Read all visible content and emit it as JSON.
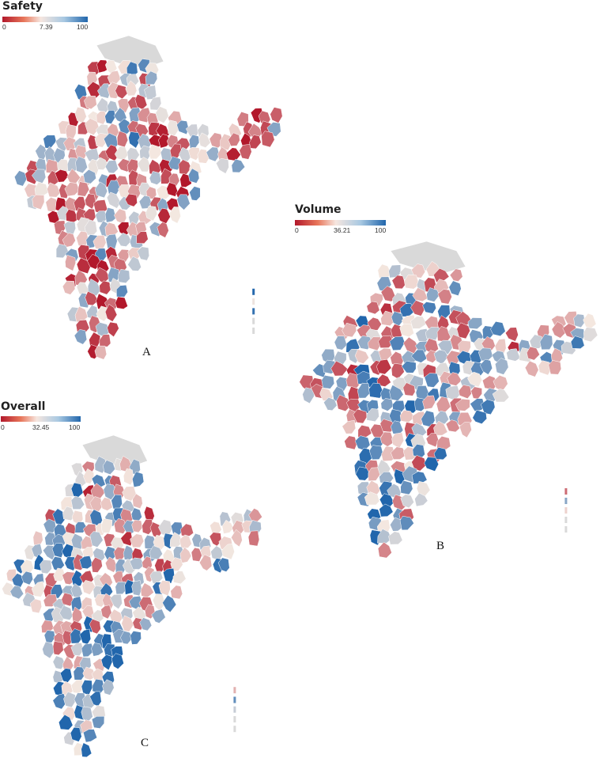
{
  "colors": {
    "low": "#b2182b",
    "mid": "#f4e8e0",
    "high": "#2166ac",
    "no_data": "#d9d9d9",
    "border": "#ffffff"
  },
  "panels": [
    {
      "id": "A",
      "letter": "A",
      "legend": {
        "title": "Safety",
        "min": "0",
        "mid": "7.39",
        "max": "100"
      }
    },
    {
      "id": "B",
      "letter": "B",
      "legend": {
        "title": "Volume",
        "min": "0",
        "mid": "36.21",
        "max": "100"
      }
    },
    {
      "id": "C",
      "letter": "C",
      "legend": {
        "title": "Overall",
        "min": "0",
        "mid": "32.45",
        "max": "100"
      }
    }
  ]
}
